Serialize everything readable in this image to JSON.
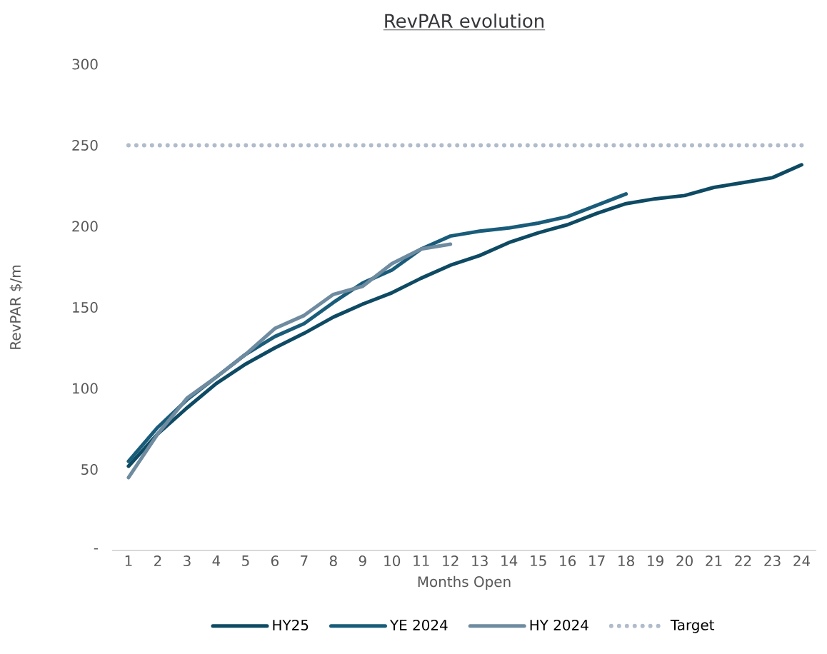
{
  "chart_data": {
    "type": "line",
    "title": "RevPAR evolution",
    "xlabel": "Months Open",
    "ylabel": "RevPAR $/m",
    "categories": [
      "1",
      "2",
      "3",
      "4",
      "5",
      "6",
      "7",
      "8",
      "9",
      "10",
      "11",
      "12",
      "13",
      "14",
      "15",
      "16",
      "17",
      "18",
      "19",
      "20",
      "21",
      "22",
      "23",
      "24"
    ],
    "series": [
      {
        "name": "HY25",
        "color": "#0e4a63",
        "values": [
          52,
          72,
          88,
          103,
          115,
          125,
          134,
          144,
          152,
          159,
          168,
          176,
          182,
          190,
          196,
          201,
          208,
          214,
          217,
          219,
          224,
          227,
          230,
          238
        ]
      },
      {
        "name": "YE 2024",
        "color": "#195c7a",
        "values": [
          55,
          76,
          93,
          107,
          121,
          132,
          140,
          153,
          165,
          173,
          186,
          194,
          197,
          199,
          202,
          206,
          213,
          220,
          null,
          null,
          null,
          null,
          null,
          null
        ]
      },
      {
        "name": "HY 2024",
        "color": "#6e8ba0",
        "values": [
          45,
          72,
          94,
          107,
          121,
          137,
          145,
          158,
          163,
          177,
          186,
          189,
          null,
          null,
          null,
          null,
          null,
          null,
          null,
          null,
          null,
          null,
          null,
          null
        ]
      },
      {
        "name": "Target",
        "color": "#b0bccb",
        "line_style": "dotted",
        "values": [
          250,
          250,
          250,
          250,
          250,
          250,
          250,
          250,
          250,
          250,
          250,
          250,
          250,
          250,
          250,
          250,
          250,
          250,
          250,
          250,
          250,
          250,
          250,
          250
        ]
      }
    ],
    "ylim": [
      0,
      300
    ],
    "yticks": [
      {
        "value": 0,
        "label": "-"
      },
      50,
      100,
      150,
      200,
      250,
      300
    ],
    "grid": false,
    "legend": "bottom",
    "line_style": "solid",
    "marker": "none"
  }
}
